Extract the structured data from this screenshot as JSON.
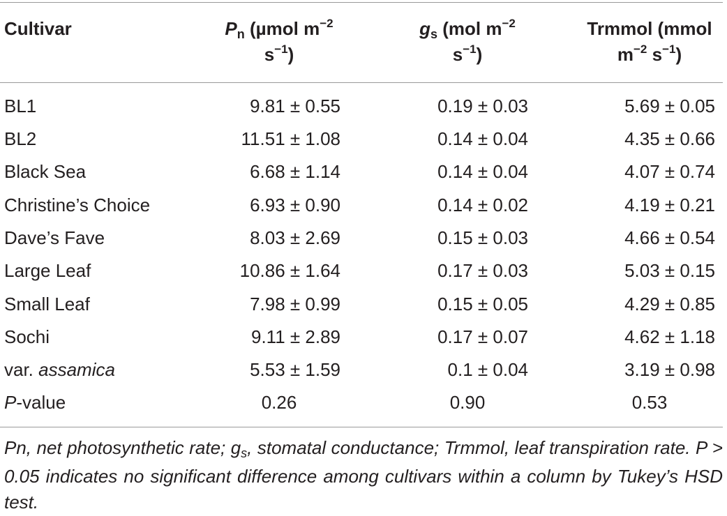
{
  "header": {
    "cultivar": "Cultivar",
    "pn": {
      "sym": "P",
      "sub": "n",
      "line1": "(µmol m",
      "sup1": "−2",
      "line2a": "s",
      "sup2": "−1",
      "line2b": ")"
    },
    "gs": {
      "sym": "g",
      "sub": "s",
      "line1": "(mol m",
      "sup1": "−2",
      "line2a": "s",
      "sup2": "−1",
      "line2b": ")"
    },
    "tr": {
      "line1": "Trmmol (mmol",
      "line2a": "m",
      "sup1": "−2",
      "mid": "s",
      "sup2": "−1",
      "line2b": ")"
    }
  },
  "rows": [
    {
      "cultivar": "BL1",
      "pn": "9.81 ± 0.55",
      "gs": "0.19 ± 0.03",
      "tr": "5.69 ± 0.05"
    },
    {
      "cultivar": "BL2",
      "pn": "11.51 ± 1.08",
      "gs": "0.14 ± 0.04",
      "tr": "4.35 ± 0.66"
    },
    {
      "cultivar": "Black Sea",
      "pn": "6.68 ± 1.14",
      "gs": "0.14 ± 0.04",
      "tr": "4.07 ± 0.74"
    },
    {
      "cultivar": "Christine’s Choice",
      "pn": "6.93 ± 0.90",
      "gs": "0.14 ± 0.02",
      "tr": "4.19 ± 0.21"
    },
    {
      "cultivar": "Dave’s Fave",
      "pn": "8.03 ± 2.69",
      "gs": "0.15 ± 0.03",
      "tr": "4.66 ± 0.54"
    },
    {
      "cultivar": "Large Leaf",
      "pn": "10.86 ± 1.64",
      "gs": "0.17 ± 0.03",
      "tr": "5.03 ± 0.15"
    },
    {
      "cultivar": "Small Leaf",
      "pn": "7.98 ± 0.99",
      "gs": "0.15 ± 0.05",
      "tr": "4.29 ± 0.85"
    },
    {
      "cultivar": "Sochi",
      "pn": "9.11 ± 2.89",
      "gs": "0.17 ± 0.07",
      "tr": "4.62 ± 1.18"
    },
    {
      "cultivar_prefix": "var. ",
      "cultivar_italic": "assamica",
      "pn": "5.53 ± 1.59",
      "gs": "0.1 ± 0.04",
      "tr": "3.19 ± 0.98"
    }
  ],
  "pvalue": {
    "label_italic": "P",
    "label_rest": "-value",
    "pn": "0.26",
    "gs": "0.90",
    "tr": "0.53"
  },
  "footnote": {
    "p1": "Pn, net photosynthetic rate; g",
    "p1_sub": "s",
    "p2": ", stomatal conductance; Trmmol, leaf transpiration rate. P > 0.05 indicates no significant difference among cultivars within a column by Tukey’s HSD test."
  }
}
